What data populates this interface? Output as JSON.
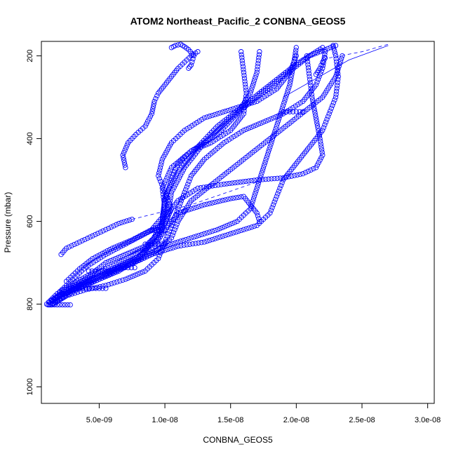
{
  "chart_data": {
    "type": "scatter",
    "title": "ATOM2 Northeast_Pacific_2 CONBNA_GEOS5",
    "xlabel": "CONBNA_GEOS5",
    "ylabel": "Pressure (mbar)",
    "xlim": [
      6e-10,
      3.05e-08
    ],
    "ylim": [
      1040,
      165
    ],
    "y_reversed": true,
    "x_ticks": [
      {
        "value": 5e-09,
        "label": "5.0e-09"
      },
      {
        "value": 1e-08,
        "label": "1.0e-08"
      },
      {
        "value": 1.5e-08,
        "label": "1.5e-08"
      },
      {
        "value": 2e-08,
        "label": "2.0e-08"
      },
      {
        "value": 2.5e-08,
        "label": "2.5e-08"
      },
      {
        "value": 3e-08,
        "label": "3.0e-08"
      }
    ],
    "y_ticks": [
      {
        "value": 200,
        "label": "200"
      },
      {
        "value": 400,
        "label": "400"
      },
      {
        "value": 600,
        "label": "600"
      },
      {
        "value": 800,
        "label": "800"
      },
      {
        "value": 1000,
        "label": "1000"
      }
    ],
    "grid": false,
    "marker": "open-circle",
    "color": "#0000ff",
    "series": [
      {
        "points": [
          [
            1.1e-09,
            802
          ],
          [
            2e-09,
            780
          ],
          [
            3.5e-09,
            760
          ],
          [
            5e-09,
            740
          ],
          [
            6.5e-09,
            720
          ],
          [
            8e-09,
            690
          ],
          [
            9e-09,
            650
          ],
          [
            9.8e-09,
            600
          ],
          [
            1e-08,
            540
          ],
          [
            1.1e-08,
            480
          ],
          [
            1.25e-08,
            420
          ],
          [
            1.4e-08,
            370
          ],
          [
            1.6e-08,
            320
          ],
          [
            1.8e-08,
            270
          ],
          [
            2e-08,
            220
          ],
          [
            2.2e-08,
            180
          ]
        ]
      },
      {
        "points": [
          [
            1.3e-09,
            802
          ],
          [
            2.5e-09,
            775
          ],
          [
            4e-09,
            745
          ],
          [
            6e-09,
            715
          ],
          [
            8e-09,
            685
          ],
          [
            9.5e-09,
            640
          ],
          [
            1.02e-08,
            590
          ],
          [
            1.05e-08,
            530
          ],
          [
            1.15e-08,
            470
          ],
          [
            1.3e-08,
            410
          ],
          [
            1.5e-08,
            350
          ],
          [
            1.7e-08,
            300
          ],
          [
            1.9e-08,
            250
          ],
          [
            2.1e-08,
            200
          ],
          [
            2.3e-08,
            175
          ]
        ]
      },
      {
        "points": [
          [
            1.5e-09,
            800
          ],
          [
            3e-09,
            770
          ],
          [
            5e-09,
            740
          ],
          [
            7e-09,
            710
          ],
          [
            9e-09,
            680
          ],
          [
            1.05e-08,
            640
          ],
          [
            1.1e-08,
            600
          ],
          [
            1.2e-08,
            550
          ],
          [
            1.4e-08,
            500
          ],
          [
            1.6e-08,
            450
          ],
          [
            1.8e-08,
            400
          ],
          [
            2e-08,
            350
          ],
          [
            2.2e-08,
            300
          ],
          [
            2.3e-08,
            250
          ],
          [
            2.35e-08,
            200
          ]
        ]
      },
      {
        "points": [
          [
            1.2e-09,
            795
          ],
          [
            2.5e-09,
            765
          ],
          [
            4.5e-09,
            730
          ],
          [
            6.5e-09,
            700
          ],
          [
            8.5e-09,
            665
          ],
          [
            9.7e-09,
            620
          ],
          [
            1e-08,
            570
          ],
          [
            9.8e-09,
            520
          ],
          [
            1.05e-08,
            470
          ],
          [
            1.2e-08,
            430
          ],
          [
            1.4e-08,
            390
          ],
          [
            1.55e-08,
            340
          ],
          [
            1.65e-08,
            290
          ],
          [
            1.7e-08,
            240
          ],
          [
            1.72e-08,
            190
          ]
        ]
      },
      {
        "points": [
          [
            1.4e-09,
            790
          ],
          [
            3e-09,
            760
          ],
          [
            5.5e-09,
            725
          ],
          [
            7.5e-09,
            695
          ],
          [
            9.2e-09,
            660
          ],
          [
            1e-08,
            620
          ],
          [
            1.1e-08,
            580
          ],
          [
            1.3e-08,
            560
          ],
          [
            1.5e-08,
            545
          ],
          [
            1.6e-08,
            540
          ],
          [
            1.65e-08,
            560
          ],
          [
            1.7e-08,
            580
          ],
          [
            1.72e-08,
            600
          ]
        ]
      },
      {
        "points": [
          [
            1.8e-09,
            785
          ],
          [
            3.5e-09,
            755
          ],
          [
            6e-09,
            720
          ],
          [
            8e-09,
            690
          ],
          [
            1e-08,
            660
          ],
          [
            1.2e-08,
            640
          ],
          [
            1.4e-08,
            620
          ],
          [
            1.55e-08,
            600
          ],
          [
            1.65e-08,
            570
          ],
          [
            1.7e-08,
            520
          ],
          [
            1.75e-08,
            470
          ],
          [
            1.8e-08,
            420
          ],
          [
            1.85e-08,
            370
          ],
          [
            1.9e-08,
            320
          ],
          [
            1.95e-08,
            270
          ],
          [
            1.98e-08,
            220
          ],
          [
            2e-08,
            180
          ]
        ]
      },
      {
        "points": [
          [
            2e-09,
            780
          ],
          [
            4e-09,
            750
          ],
          [
            6.5e-09,
            715
          ],
          [
            9e-09,
            680
          ],
          [
            1.1e-08,
            660
          ],
          [
            1.3e-08,
            650
          ],
          [
            1.5e-08,
            630
          ],
          [
            1.7e-08,
            610
          ],
          [
            1.8e-08,
            580
          ],
          [
            1.85e-08,
            540
          ],
          [
            1.9e-08,
            500
          ],
          [
            2e-08,
            460
          ],
          [
            2.1e-08,
            420
          ],
          [
            2.2e-08,
            380
          ],
          [
            2.25e-08,
            340
          ],
          [
            2.3e-08,
            300
          ],
          [
            2.32e-08,
            250
          ],
          [
            2.3e-08,
            200
          ],
          [
            2.28e-08,
            175
          ]
        ]
      },
      {
        "points": [
          [
            1e-09,
            800
          ],
          [
            1.8e-09,
            775
          ],
          [
            3e-09,
            750
          ],
          [
            4.5e-09,
            725
          ],
          [
            5.5e-09,
            700
          ],
          [
            7e-09,
            680
          ],
          [
            8.5e-09,
            660
          ],
          [
            9.5e-09,
            630
          ],
          [
            1e-08,
            590
          ],
          [
            1.1e-08,
            550
          ],
          [
            1.25e-08,
            520
          ],
          [
            1.45e-08,
            510
          ],
          [
            1.7e-08,
            500
          ],
          [
            1.9e-08,
            495
          ],
          [
            2.05e-08,
            485
          ],
          [
            2.15e-08,
            470
          ],
          [
            2.2e-08,
            440
          ],
          [
            2.18e-08,
            400
          ],
          [
            2.15e-08,
            350
          ],
          [
            2.12e-08,
            300
          ],
          [
            2.1e-08,
            250
          ],
          [
            2.08e-08,
            200
          ]
        ]
      },
      {
        "points": [
          [
            2e-09,
            770
          ],
          [
            3e-09,
            740
          ],
          [
            4e-09,
            710
          ],
          [
            5.5e-09,
            680
          ],
          [
            7e-09,
            655
          ],
          [
            8.5e-09,
            630
          ],
          [
            1e-08,
            605
          ],
          [
            1.05e-08,
            570
          ],
          [
            1e-08,
            530
          ],
          [
            9.5e-09,
            490
          ],
          [
            9.8e-09,
            450
          ],
          [
            1.05e-08,
            410
          ],
          [
            1.15e-08,
            380
          ],
          [
            1.3e-08,
            350
          ],
          [
            1.5e-08,
            330
          ],
          [
            1.7e-08,
            310
          ],
          [
            1.85e-08,
            280
          ],
          [
            1.95e-08,
            240
          ],
          [
            2e-08,
            200
          ]
        ]
      },
      {
        "points": [
          [
            2.5e-09,
            745
          ],
          [
            3.5e-09,
            715
          ],
          [
            4.5e-09,
            690
          ],
          [
            6e-09,
            665
          ],
          [
            7.5e-09,
            645
          ],
          [
            9e-09,
            620
          ],
          [
            9.8e-09,
            590
          ],
          [
            1e-08,
            550
          ],
          [
            1.05e-08,
            500
          ],
          [
            1.1e-08,
            460
          ],
          [
            1.2e-08,
            430
          ],
          [
            1.35e-08,
            410
          ],
          [
            1.5e-08,
            380
          ],
          [
            1.6e-08,
            340
          ],
          [
            1.62e-08,
            290
          ],
          [
            1.6e-08,
            240
          ],
          [
            1.58e-08,
            190
          ]
        ]
      },
      {
        "points": [
          [
            1.5e-09,
            800
          ],
          [
            2.5e-09,
            780
          ],
          [
            4e-09,
            765
          ],
          [
            5.5e-09,
            755
          ],
          [
            7e-09,
            740
          ],
          [
            8.5e-09,
            720
          ],
          [
            9.5e-09,
            690
          ],
          [
            1e-08,
            650
          ],
          [
            1.05e-08,
            610
          ],
          [
            1.1e-08,
            570
          ],
          [
            1.15e-08,
            530
          ],
          [
            1.2e-08,
            490
          ],
          [
            1.3e-08,
            450
          ],
          [
            1.45e-08,
            410
          ],
          [
            1.6e-08,
            380
          ],
          [
            1.75e-08,
            360
          ],
          [
            1.9e-08,
            340
          ],
          [
            2.05e-08,
            310
          ],
          [
            2.15e-08,
            270
          ],
          [
            2.2e-08,
            230
          ],
          [
            2.22e-08,
            190
          ]
        ]
      },
      {
        "points": [
          [
            2.1e-09,
            680
          ],
          [
            2.5e-09,
            665
          ],
          [
            3.5e-09,
            650
          ],
          [
            4.5e-09,
            635
          ],
          [
            5.5e-09,
            620
          ],
          [
            6.5e-09,
            605
          ],
          [
            7.5e-09,
            595
          ]
        ]
      },
      {
        "points": [
          [
            7e-09,
            470
          ],
          [
            6.8e-09,
            440
          ],
          [
            7.2e-09,
            410
          ],
          [
            7.8e-09,
            390
          ],
          [
            8.5e-09,
            370
          ],
          [
            9e-09,
            340
          ],
          [
            9.2e-09,
            310
          ],
          [
            9.5e-09,
            290
          ],
          [
            1e-08,
            270
          ],
          [
            1.05e-08,
            250
          ],
          [
            1.1e-08,
            230
          ],
          [
            1.15e-08,
            215
          ],
          [
            1.2e-08,
            200
          ],
          [
            1.25e-08,
            190
          ]
        ]
      },
      {
        "points": [
          [
            1.05e-08,
            180
          ],
          [
            1.08e-08,
            175
          ],
          [
            1.12e-08,
            172
          ],
          [
            1.15e-08,
            178
          ],
          [
            1.18e-08,
            185
          ],
          [
            1.22e-08,
            200
          ],
          [
            1.2e-08,
            222
          ],
          [
            1.18e-08,
            230
          ]
        ]
      },
      {
        "points": [
          [
            1.2e-09,
            802
          ],
          [
            1.6e-09,
            802
          ],
          [
            2e-09,
            802
          ],
          [
            2.4e-09,
            802
          ],
          [
            2.8e-09,
            802
          ]
        ]
      },
      {
        "points": [
          [
            3e-09,
            762
          ],
          [
            3.5e-09,
            762
          ],
          [
            4e-09,
            762
          ],
          [
            4.5e-09,
            762
          ],
          [
            5e-09,
            762
          ],
          [
            5.5e-09,
            762
          ]
        ]
      },
      {
        "points": [
          [
            4.2e-09,
            720
          ],
          [
            4.7e-09,
            720
          ],
          [
            5.2e-09,
            720
          ],
          [
            5.7e-09,
            720
          ]
        ]
      },
      {
        "points": [
          [
            6.2e-09,
            712
          ],
          [
            6.7e-09,
            712
          ],
          [
            7.2e-09,
            712
          ],
          [
            7.7e-09,
            712
          ]
        ]
      },
      {
        "points": [
          [
            8.5e-09,
            655
          ],
          [
            9e-09,
            655
          ],
          [
            9.5e-09,
            655
          ],
          [
            1e-08,
            655
          ]
        ]
      },
      {
        "points": [
          [
            9e-09,
            622
          ],
          [
            9.5e-09,
            622
          ],
          [
            1e-08,
            622
          ]
        ]
      },
      {
        "points": [
          [
            1.9e-08,
            335
          ],
          [
            1.95e-08,
            335
          ],
          [
            2e-08,
            335
          ],
          [
            2.05e-08,
            335
          ]
        ]
      },
      {
        "points": [
          [
            2.15e-08,
            245
          ],
          [
            2.18e-08,
            230
          ],
          [
            2.2e-08,
            215
          ],
          [
            2.22e-08,
            205
          ]
        ]
      }
    ],
    "connected_lines": [
      {
        "points": [
          [
            7.5e-09,
            595
          ],
          [
            1.2e-08,
            560
          ],
          [
            1.7e-08,
            505
          ]
        ],
        "dash": true
      },
      {
        "points": [
          [
            1.9e-08,
            300
          ],
          [
            2.4e-08,
            210
          ],
          [
            2.7e-08,
            175
          ]
        ],
        "dash": false
      },
      {
        "points": [
          [
            2.25e-08,
            205
          ],
          [
            2.5e-08,
            190
          ],
          [
            2.7e-08,
            172
          ]
        ],
        "dash": true
      }
    ]
  }
}
